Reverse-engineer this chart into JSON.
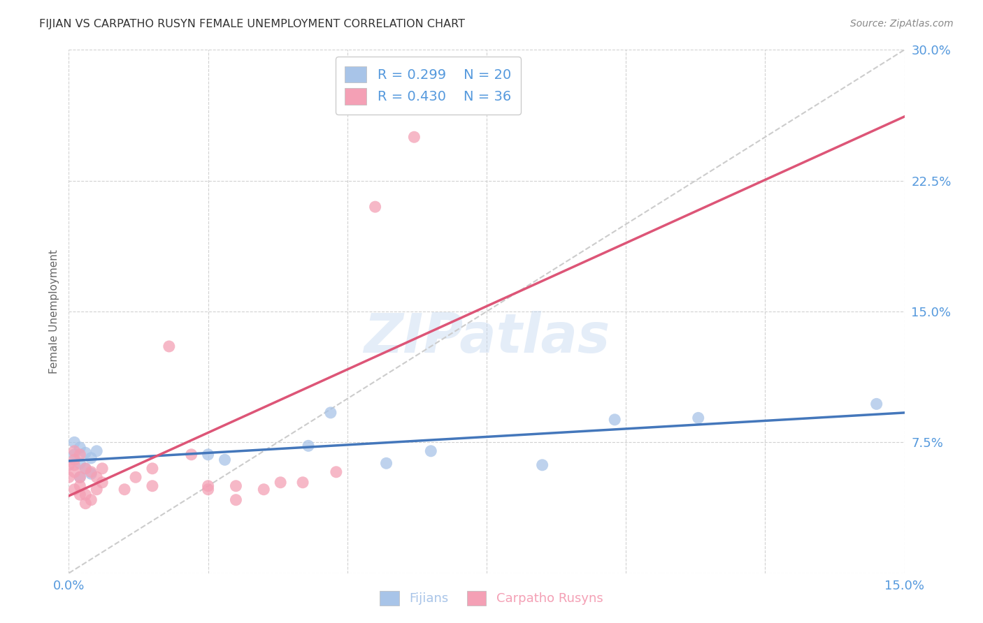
{
  "title": "FIJIAN VS CARPATHO RUSYN FEMALE UNEMPLOYMENT CORRELATION CHART",
  "source": "Source: ZipAtlas.com",
  "ylabel": "Female Unemployment",
  "xlim": [
    0.0,
    0.15
  ],
  "ylim": [
    0.0,
    0.3
  ],
  "ytick_positions": [
    0.0,
    0.075,
    0.15,
    0.225,
    0.3
  ],
  "ytick_labels": [
    "",
    "7.5%",
    "15.0%",
    "22.5%",
    "30.0%"
  ],
  "xtick_positions": [
    0.0,
    0.025,
    0.05,
    0.075,
    0.1,
    0.125,
    0.15
  ],
  "xtick_labels": [
    "0.0%",
    "",
    "",
    "",
    "",
    "",
    "15.0%"
  ],
  "legend_R_fijian": "R = 0.299",
  "legend_N_fijian": "N = 20",
  "legend_R_carpatho": "R = 0.430",
  "legend_N_carpatho": "N = 36",
  "fijian_color": "#a8c4e8",
  "carpatho_color": "#f4a0b5",
  "fijian_line_color": "#4477bb",
  "carpatho_line_color": "#dd5577",
  "ref_line_color": "#cccccc",
  "background_color": "#ffffff",
  "grid_color": "#cccccc",
  "title_color": "#333333",
  "source_color": "#888888",
  "axis_label_color": "#666666",
  "tick_color": "#5599dd",
  "legend_text_color": "#5599dd",
  "bottom_legend_fijian": "Fijians",
  "bottom_legend_carpatho": "Carpatho Rusyns",
  "fijian_x": [
    0.001,
    0.002,
    0.003,
    0.004,
    0.005,
    0.001,
    0.002,
    0.003,
    0.025,
    0.028,
    0.043,
    0.047,
    0.057,
    0.065,
    0.085,
    0.098,
    0.113,
    0.145,
    0.002,
    0.004
  ],
  "fijian_y": [
    0.068,
    0.072,
    0.069,
    0.066,
    0.07,
    0.075,
    0.063,
    0.06,
    0.068,
    0.065,
    0.073,
    0.092,
    0.063,
    0.07,
    0.062,
    0.088,
    0.089,
    0.097,
    0.055,
    0.057
  ],
  "carpatho_x": [
    0.001,
    0.002,
    0.003,
    0.004,
    0.005,
    0.006,
    0.001,
    0.002,
    0.003,
    0.004,
    0.005,
    0.006,
    0.0,
    0.001,
    0.002,
    0.001,
    0.002,
    0.003,
    0.0,
    0.001,
    0.01,
    0.012,
    0.015,
    0.018,
    0.022,
    0.025,
    0.03,
    0.035,
    0.038,
    0.042,
    0.048,
    0.055,
    0.062,
    0.015,
    0.025,
    0.03
  ],
  "carpatho_y": [
    0.065,
    0.068,
    0.06,
    0.058,
    0.055,
    0.06,
    0.048,
    0.05,
    0.045,
    0.042,
    0.048,
    0.052,
    0.062,
    0.07,
    0.055,
    0.058,
    0.045,
    0.04,
    0.055,
    0.062,
    0.048,
    0.055,
    0.06,
    0.13,
    0.068,
    0.05,
    0.05,
    0.048,
    0.052,
    0.052,
    0.058,
    0.21,
    0.25,
    0.05,
    0.048,
    0.042
  ]
}
